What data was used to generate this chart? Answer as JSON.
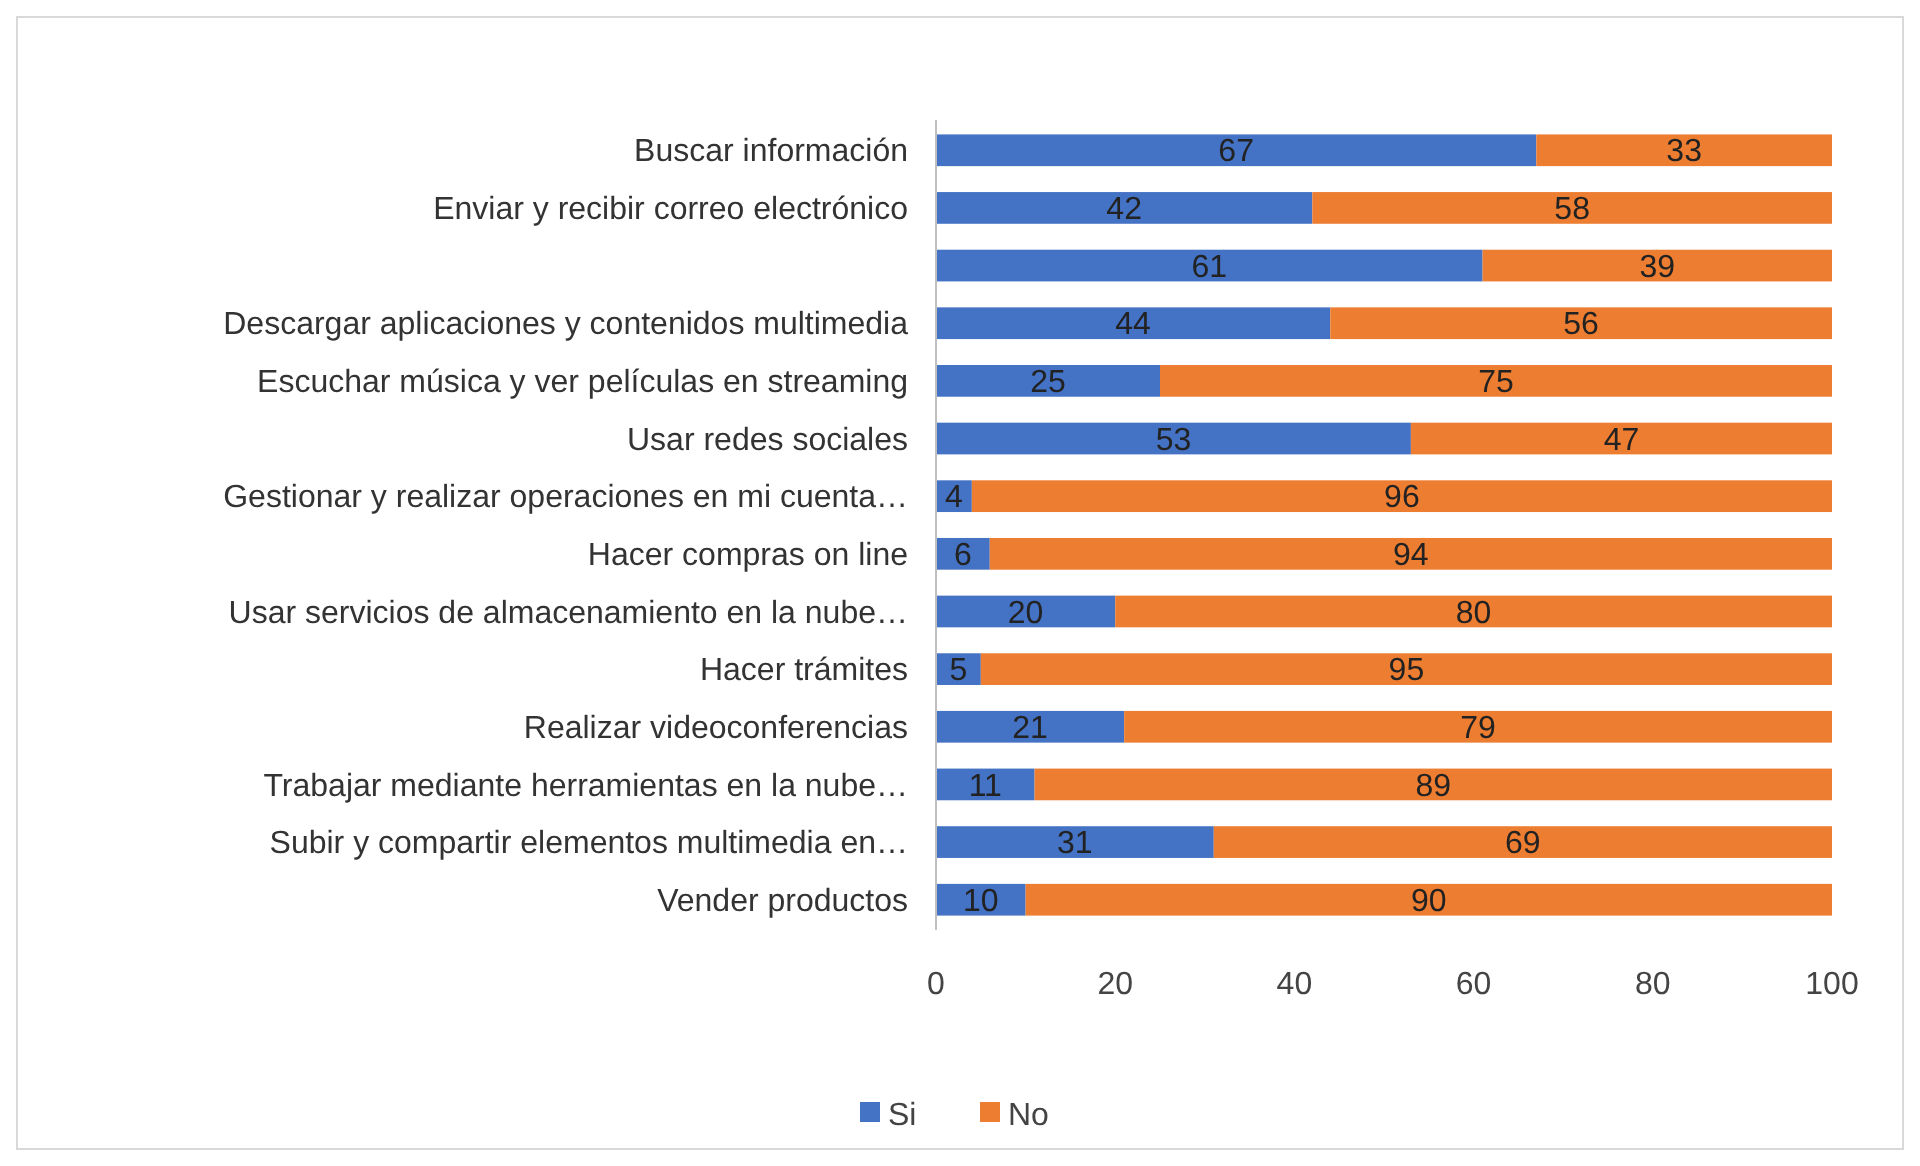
{
  "chart_data": {
    "type": "bar",
    "orientation": "horizontal",
    "stacked": true,
    "data_labels": true,
    "legend": "bottom",
    "categories": [
      "Buscar información",
      "Enviar y recibir correo electrónico",
      null,
      "Descargar aplicaciones y contenidos multimedia",
      "Escuchar música y ver películas en streaming",
      "Usar redes sociales",
      "Gestionar y realizar operaciones en mi cuenta…",
      "Hacer compras on line",
      "Usar servicios de almacenamiento en la nube…",
      "Hacer trámites",
      "Realizar videoconferencias",
      "Trabajar mediante herramientas en la nube…",
      "Subir y compartir elementos multimedia en…",
      "Vender productos"
    ],
    "series": [
      {
        "name": "Si",
        "color": "#4472c4",
        "values": [
          67,
          42,
          61,
          44,
          25,
          53,
          4,
          6,
          20,
          5,
          21,
          11,
          31,
          10
        ]
      },
      {
        "name": "No",
        "color": "#ed7d31",
        "values": [
          33,
          58,
          39,
          56,
          75,
          47,
          96,
          94,
          80,
          95,
          79,
          89,
          69,
          90
        ]
      }
    ],
    "xlim": [
      0,
      100
    ],
    "xticks": [
      0,
      20,
      40,
      60,
      80,
      100
    ]
  }
}
